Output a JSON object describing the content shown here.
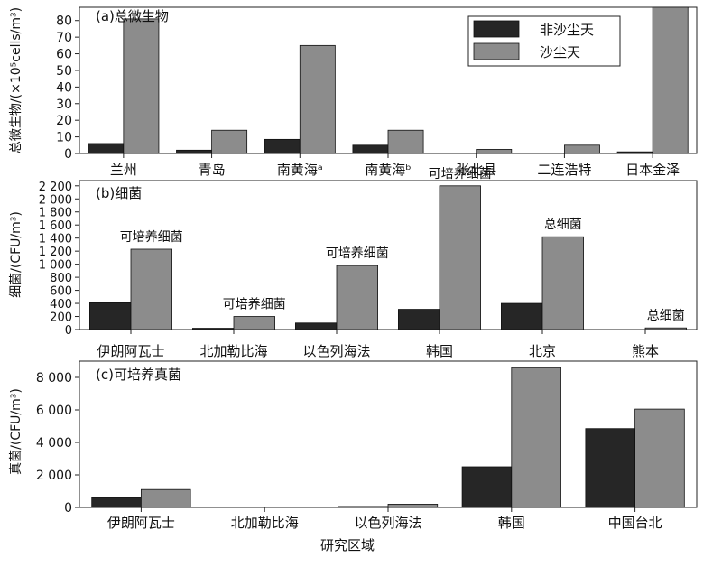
{
  "legend": [
    {
      "label": "非沙尘天",
      "color": "#262626"
    },
    {
      "label": "沙尘天",
      "color": "#8c8c8c"
    }
  ],
  "xlabel": "研究区域",
  "chart_data": [
    {
      "type": "bar",
      "title": "(a)总微生物",
      "ylabel": "总微生物/(×10⁵cells/m³)",
      "ylim": [
        0,
        88
      ],
      "yticks": [
        0,
        10,
        20,
        30,
        40,
        50,
        60,
        70,
        80
      ],
      "ytick_labels": [
        "0",
        "10",
        "20",
        "30",
        "40",
        "50",
        "60",
        "70",
        "80"
      ],
      "categories": [
        "兰州",
        "青岛",
        "南黄海ᵃ",
        "南黄海ᵇ",
        "张北县",
        "二连浩特",
        "日本金泽"
      ],
      "series": [
        {
          "name": "非沙尘天",
          "values": [
            6,
            2,
            8.5,
            5,
            0,
            0,
            1
          ]
        },
        {
          "name": "沙尘天",
          "values": [
            81,
            14,
            65,
            14,
            2.5,
            5,
            88
          ]
        }
      ],
      "annotations": []
    },
    {
      "type": "bar",
      "title": "(b)细菌",
      "ylabel": "细菌/(CFU/m³)",
      "ylim": [
        0,
        2280
      ],
      "yticks": [
        0,
        200,
        400,
        600,
        800,
        1000,
        1200,
        1400,
        1600,
        1800,
        2000,
        2200
      ],
      "ytick_labels": [
        "0",
        "200",
        "400",
        "600",
        "800",
        "1 000",
        "1 200",
        "1 400",
        "1 600",
        "1 800",
        "2 000",
        "2 200"
      ],
      "categories": [
        "伊朗阿瓦士",
        "北加勒比海",
        "以色列海法",
        "韩国",
        "北京",
        "熊本"
      ],
      "series": [
        {
          "name": "非沙尘天",
          "values": [
            410,
            20,
            100,
            310,
            400,
            0
          ]
        },
        {
          "name": "沙尘天",
          "values": [
            1230,
            200,
            980,
            2200,
            1420,
            25
          ]
        }
      ],
      "annotations": [
        "可培养细菌",
        "可培养细菌",
        "可培养细菌",
        "可培养细菌",
        "总细菌",
        "总细菌"
      ]
    },
    {
      "type": "bar",
      "title": "(c)可培养真菌",
      "ylabel": "真菌/(CFU/m³)",
      "ylim": [
        0,
        9000
      ],
      "yticks": [
        0,
        2000,
        4000,
        6000,
        8000
      ],
      "ytick_labels": [
        "0",
        "2 000",
        "4 000",
        "6 000",
        "8 000"
      ],
      "categories": [
        "伊朗阿瓦士",
        "北加勒比海",
        "以色列海法",
        "韩国",
        "中国台北"
      ],
      "series": [
        {
          "name": "非沙尘天",
          "values": [
            600,
            0,
            60,
            2500,
            4850
          ]
        },
        {
          "name": "沙尘天",
          "values": [
            1100,
            0,
            200,
            8600,
            6050
          ]
        }
      ],
      "annotations": []
    }
  ]
}
